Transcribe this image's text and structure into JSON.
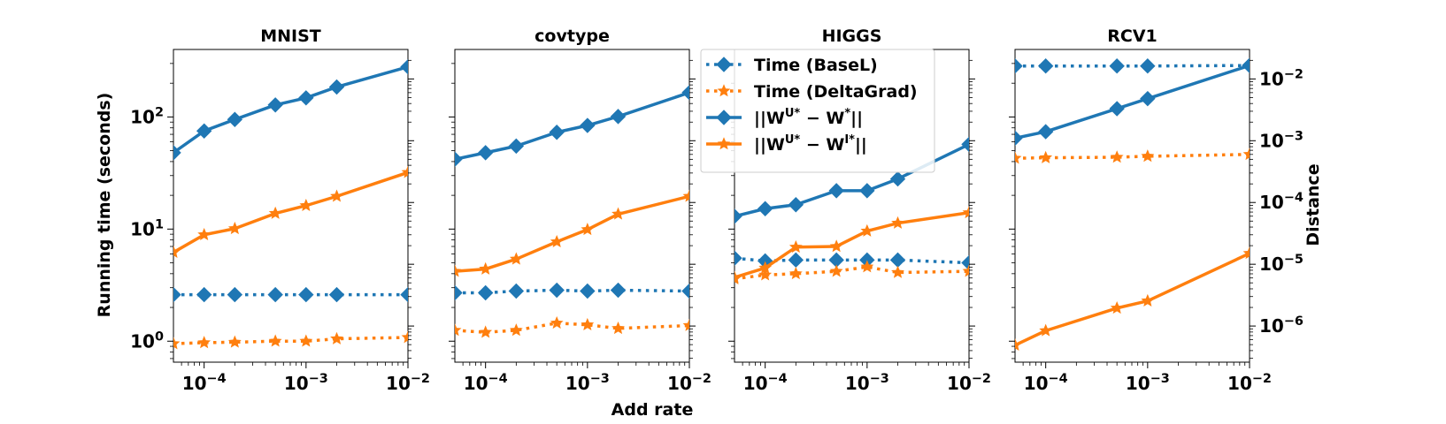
{
  "chart_data": {
    "type": "line",
    "xlabel": "Add rate",
    "ylabel_left": "Running time (seconds)",
    "ylabel_right": "Distance",
    "x_scale": "log",
    "y_scale": "log",
    "xlim": [
      5e-05,
      0.01
    ],
    "x_ticks": [
      {
        "value": 0.0001,
        "label": "10",
        "exp": "−4"
      },
      {
        "value": 0.001,
        "label": "10",
        "exp": "−3"
      },
      {
        "value": 0.01,
        "label": "10",
        "exp": "−2"
      }
    ],
    "left_ylim": [
      0.65,
      400
    ],
    "left_y_ticks": [
      {
        "value": 1,
        "label": "10",
        "exp": "0"
      },
      {
        "value": 10,
        "label": "10",
        "exp": "1"
      },
      {
        "value": 100,
        "label": "10",
        "exp": "2"
      }
    ],
    "right_ylim": [
      2.6e-07,
      0.03
    ],
    "right_y_ticks": [
      {
        "value": 1e-06,
        "label": "10",
        "exp": "−6"
      },
      {
        "value": 1e-05,
        "label": "10",
        "exp": "−5"
      },
      {
        "value": 0.0001,
        "label": "10",
        "exp": "−4"
      },
      {
        "value": 0.001,
        "label": "10",
        "exp": "−3"
      },
      {
        "value": 0.01,
        "label": "10",
        "exp": "−2"
      }
    ],
    "colors": {
      "blue": "#1f77b4",
      "orange": "#ff7f0e"
    },
    "legend": {
      "placement": "upper-center",
      "entries": [
        {
          "label": "Time (BaseL)",
          "color": "#1f77b4",
          "style": "dotted",
          "marker": "diamond"
        },
        {
          "label": "Time (DeltaGrad)",
          "color": "#ff7f0e",
          "style": "dotted",
          "marker": "star"
        },
        {
          "label": "||W",
          "sup": "U*",
          "mid": " − W",
          "sup2": "*",
          "end": "||",
          "color": "#1f77b4",
          "style": "solid",
          "marker": "diamond"
        },
        {
          "label": "||W",
          "sup": "U*",
          "mid": " − W",
          "sup2": "I*",
          "end": "||",
          "color": "#ff7f0e",
          "style": "solid",
          "marker": "star"
        }
      ]
    },
    "panels": [
      {
        "title": "MNIST",
        "show_left_ticks": true,
        "show_right_ticks": false,
        "series": [
          {
            "axis": "left",
            "color": "#1f77b4",
            "style": "dotted",
            "marker": "diamond",
            "x": [
              5e-05,
              0.0001,
              0.0002,
              0.0005,
              0.001,
              0.002,
              0.01
            ],
            "y": [
              2.6,
              2.6,
              2.6,
              2.6,
              2.6,
              2.6,
              2.6
            ]
          },
          {
            "axis": "left",
            "color": "#ff7f0e",
            "style": "dotted",
            "marker": "star",
            "x": [
              5e-05,
              0.0001,
              0.0002,
              0.0005,
              0.001,
              0.002,
              0.01
            ],
            "y": [
              0.95,
              0.97,
              0.98,
              1.0,
              1.0,
              1.05,
              1.08
            ]
          },
          {
            "axis": "left",
            "color": "#1f77b4",
            "style": "solid",
            "marker": "diamond",
            "x": [
              5e-05,
              0.0001,
              0.0002,
              0.0005,
              0.001,
              0.002,
              0.01
            ],
            "y": [
              48,
              75,
              95,
              128,
              148,
              185,
              280
            ]
          },
          {
            "axis": "left",
            "color": "#ff7f0e",
            "style": "solid",
            "marker": "star",
            "x": [
              5e-05,
              0.0001,
              0.0002,
              0.0005,
              0.001,
              0.002,
              0.01
            ],
            "y": [
              6.2,
              8.9,
              10.1,
              13.8,
              16.2,
              19.6,
              32
            ]
          }
        ]
      },
      {
        "title": "covtype",
        "show_left_ticks": false,
        "show_right_ticks": false,
        "series": [
          {
            "axis": "left",
            "color": "#1f77b4",
            "style": "dotted",
            "marker": "diamond",
            "x": [
              5e-05,
              0.0001,
              0.0002,
              0.0005,
              0.001,
              0.002,
              0.01
            ],
            "y": [
              2.7,
              2.7,
              2.8,
              2.85,
              2.8,
              2.85,
              2.8
            ]
          },
          {
            "axis": "left",
            "color": "#ff7f0e",
            "style": "dotted",
            "marker": "star",
            "x": [
              5e-05,
              0.0001,
              0.0002,
              0.0005,
              0.001,
              0.002,
              0.01
            ],
            "y": [
              1.25,
              1.2,
              1.25,
              1.45,
              1.4,
              1.3,
              1.38
            ]
          },
          {
            "axis": "left",
            "color": "#1f77b4",
            "style": "solid",
            "marker": "diamond",
            "x": [
              5e-05,
              0.0001,
              0.0002,
              0.0005,
              0.001,
              0.002,
              0.01
            ],
            "y": [
              42,
              48,
              55,
              73,
              84,
              101,
              165
            ]
          },
          {
            "axis": "left",
            "color": "#ff7f0e",
            "style": "solid",
            "marker": "star",
            "x": [
              5e-05,
              0.0001,
              0.0002,
              0.0005,
              0.001,
              0.002,
              0.01
            ],
            "y": [
              4.2,
              4.4,
              5.4,
              7.7,
              9.9,
              13.6,
              19.6
            ]
          }
        ]
      },
      {
        "title": "HIGGS",
        "show_left_ticks": false,
        "show_right_ticks": false,
        "series": [
          {
            "axis": "left",
            "color": "#1f77b4",
            "style": "dotted",
            "marker": "diamond",
            "x": [
              5e-05,
              0.0001,
              0.0002,
              0.0005,
              0.001,
              0.002,
              0.01
            ],
            "y": [
              5.5,
              5.2,
              5.3,
              5.3,
              5.3,
              5.3,
              5.0
            ]
          },
          {
            "axis": "left",
            "color": "#ff7f0e",
            "style": "dotted",
            "marker": "star",
            "x": [
              5e-05,
              0.0001,
              0.0002,
              0.0005,
              0.001,
              0.002,
              0.01
            ],
            "y": [
              3.6,
              3.9,
              4.0,
              4.2,
              4.6,
              4.1,
              4.2
            ]
          },
          {
            "axis": "left",
            "color": "#1f77b4",
            "style": "solid",
            "marker": "diamond",
            "x": [
              5e-05,
              0.0001,
              0.0002,
              0.0005,
              0.001,
              0.002,
              0.01
            ],
            "y": [
              13,
              15.2,
              16.5,
              22,
              22,
              28,
              57
            ]
          },
          {
            "axis": "left",
            "color": "#ff7f0e",
            "style": "solid",
            "marker": "star",
            "x": [
              5e-05,
              0.0001,
              0.0002,
              0.0005,
              0.001,
              0.002,
              0.01
            ],
            "y": [
              3.7,
              4.5,
              6.9,
              7.0,
              9.6,
              11.3,
              14
            ]
          }
        ]
      },
      {
        "title": "RCV1",
        "show_left_ticks": false,
        "show_right_ticks": true,
        "series": [
          {
            "axis": "right",
            "color": "#1f77b4",
            "style": "dotted",
            "marker": "diamond",
            "x": [
              5e-05,
              0.0001,
              0.0005,
              0.001,
              0.01
            ],
            "y": [
              0.0162,
              0.0162,
              0.0162,
              0.0162,
              0.0165
            ]
          },
          {
            "axis": "right",
            "color": "#ff7f0e",
            "style": "dotted",
            "marker": "star",
            "x": [
              5e-05,
              0.0001,
              0.0005,
              0.001,
              0.01
            ],
            "y": [
              0.00052,
              0.00053,
              0.00054,
              0.00056,
              0.0006
            ]
          },
          {
            "axis": "right",
            "color": "#1f77b4",
            "style": "solid",
            "marker": "diamond",
            "x": [
              5e-05,
              0.0001,
              0.0005,
              0.001,
              0.01
            ],
            "y": [
              0.0011,
              0.0014,
              0.0033,
              0.0048,
              0.0165
            ]
          },
          {
            "axis": "right",
            "color": "#ff7f0e",
            "style": "solid",
            "marker": "star",
            "x": [
              5e-05,
              0.0001,
              0.0005,
              0.001,
              0.01
            ],
            "y": [
              4.9e-07,
              8.4e-07,
              1.95e-06,
              2.55e-06,
              1.5e-05
            ]
          }
        ]
      }
    ]
  }
}
